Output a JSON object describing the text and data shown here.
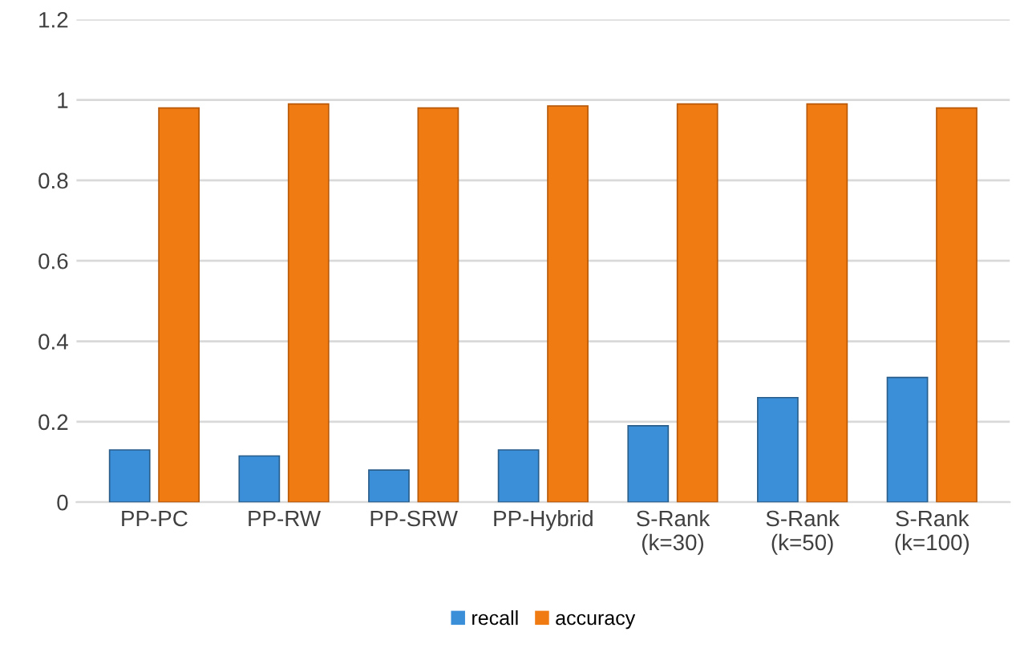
{
  "chart_data": {
    "type": "bar",
    "categories": [
      "PP-PC",
      "PP-RW",
      "PP-SRW",
      "PP-Hybrid",
      "S-Rank\n(k=30)",
      "S-Rank\n(k=50)",
      "S-Rank\n(k=100)"
    ],
    "series": [
      {
        "name": "recall",
        "color": "#3b8fd8",
        "values": [
          0.13,
          0.115,
          0.08,
          0.13,
          0.19,
          0.26,
          0.31
        ]
      },
      {
        "name": "accuracy",
        "color": "#f07b12",
        "values": [
          0.98,
          0.99,
          0.98,
          0.985,
          0.99,
          0.99,
          0.98
        ]
      }
    ],
    "ylim": [
      0,
      1.2
    ],
    "yticks": [
      0,
      0.2,
      0.4,
      0.6,
      0.8,
      1,
      1.2
    ],
    "grid": "y",
    "legend": "bottom"
  }
}
